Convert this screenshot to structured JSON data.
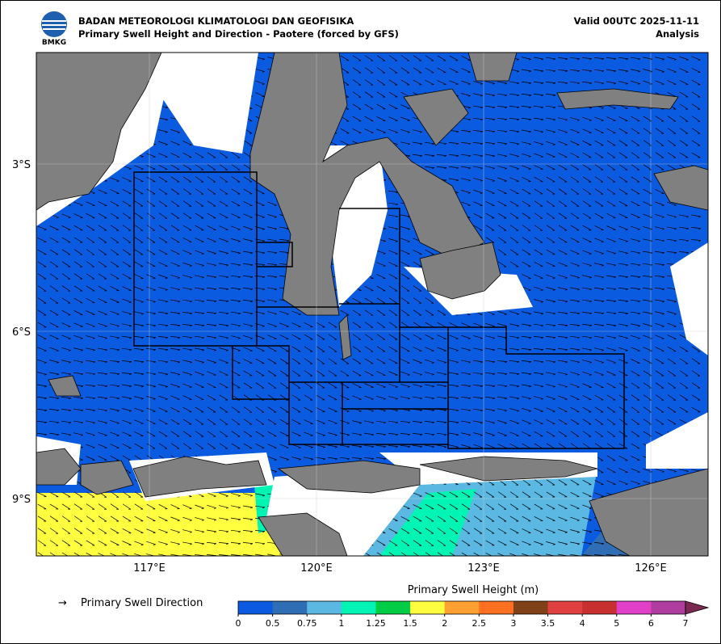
{
  "header": {
    "logo_text": "BMKG",
    "title": "BADAN METEOROLOGI KLIMATOLOGI DAN GEOFISIKA",
    "subtitle": "Primary Swell Height and Direction - Paotere (forced by GFS)",
    "valid": "Valid 00UTC 2025-11-11",
    "mode": "Analysis"
  },
  "map": {
    "lat_ticks": [
      "3°S",
      "6°S",
      "9°S"
    ],
    "lon_ticks": [
      "117°E",
      "120°E",
      "123°E",
      "126°E"
    ]
  },
  "legend": {
    "arrow_symbol": "→",
    "arrow_label": "Primary Swell Direction"
  },
  "colorbar": {
    "title": "Primary Swell Height (m)",
    "ticks": [
      0,
      0.5,
      0.75,
      1,
      1.25,
      1.5,
      2,
      2.5,
      3,
      3.5,
      4,
      5,
      6,
      7
    ],
    "colors": [
      "#0b5be0",
      "#2f6db4",
      "#5bb8e2",
      "#00f5b4",
      "#00cc44",
      "#ffff40",
      "#ffa030",
      "#ff7020",
      "#804018",
      "#e04040",
      "#c83030",
      "#e040c8",
      "#b03ca0"
    ],
    "extend_color": "#7a2a50"
  }
}
